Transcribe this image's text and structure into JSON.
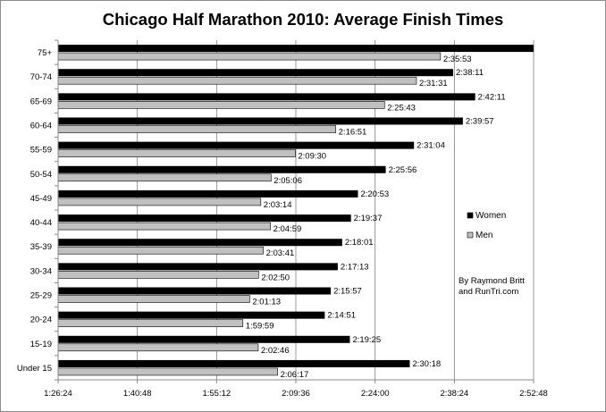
{
  "chart_data": {
    "type": "bar",
    "orientation": "horizontal",
    "title": "Chicago Half Marathon 2010: Average Finish Times",
    "xlabel": "",
    "ylabel": "",
    "categories": [
      "75+",
      "70-74",
      "65-69",
      "60-64",
      "55-59",
      "50-54",
      "45-49",
      "40-44",
      "35-39",
      "30-34",
      "25-29",
      "20-24",
      "15-19",
      "Under 15"
    ],
    "series": [
      {
        "name": "Women",
        "color": "#000000",
        "values": [
          null,
          9491,
          9731,
          9597,
          9064,
          8756,
          8453,
          8377,
          8281,
          8233,
          8157,
          8091,
          8365,
          9018
        ],
        "labels": [
          "",
          "2:38:11",
          "2:42:11",
          "2:39:57",
          "2:31:04",
          "2:25:56",
          "2:20:53",
          "2:19:37",
          "2:18:01",
          "2:17:13",
          "2:15:57",
          "2:14:51",
          "2:19:25",
          "2:30:18"
        ]
      },
      {
        "name": "Men",
        "color": "#c0c0c0",
        "values": [
          9353,
          9091,
          8743,
          8211,
          7770,
          7506,
          7394,
          7499,
          7421,
          7370,
          7273,
          7199,
          7366,
          7577
        ],
        "labels": [
          "2:35:53",
          "2:31:31",
          "2:25:43",
          "2:16:51",
          "2:09:30",
          "2:05:06",
          "2:03:14",
          "2:04:59",
          "2:03:41",
          "2:02:50",
          "2:01:13",
          "1:59:59",
          "2:02:46",
          "2:06:17"
        ]
      }
    ],
    "clipped_bars": [
      {
        "series": "Women",
        "category": "75+"
      }
    ],
    "value_unit": "seconds",
    "xlim": [
      5184,
      10368
    ],
    "xticks": [
      5184,
      6048,
      6912,
      7776,
      8640,
      9504,
      10368
    ],
    "xtick_labels": [
      "1:26:24",
      "1:40:48",
      "1:55:12",
      "2:09:36",
      "2:24:00",
      "2:38:24",
      "2:52:48"
    ],
    "grid": "vertical",
    "legend_position": "right",
    "annotation": [
      "By Raymond Britt",
      "and RunTri.com"
    ],
    "axis_color": "#888888",
    "grid_color": "#7f7f7f"
  }
}
